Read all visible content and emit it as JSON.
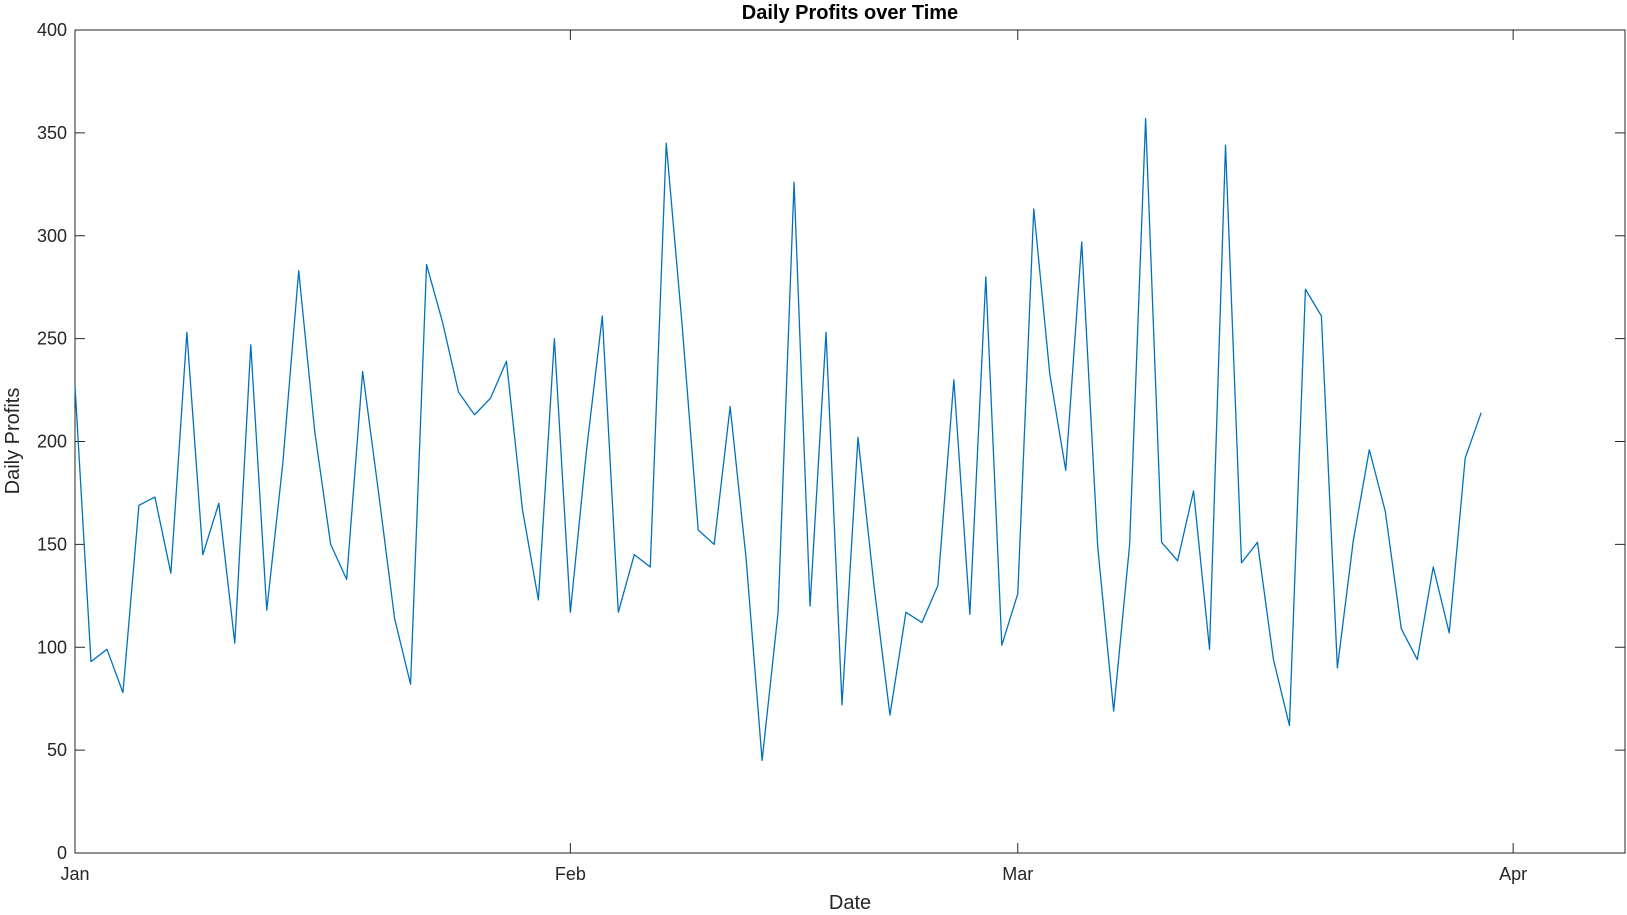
{
  "chart_data": {
    "type": "line",
    "title": "Daily Profits over Time",
    "xlabel": "Date",
    "ylabel": "Daily Profits",
    "ylim": [
      0,
      400
    ],
    "yticks": [
      0,
      50,
      100,
      150,
      200,
      250,
      300,
      350,
      400
    ],
    "xlim": [
      "2022-01-01",
      "2022-04-08"
    ],
    "xticks": [
      {
        "date": "2022-01-01",
        "label": "Jan"
      },
      {
        "date": "2022-02-01",
        "label": "Feb"
      },
      {
        "date": "2022-03-01",
        "label": "Mar"
      },
      {
        "date": "2022-04-01",
        "label": "Apr"
      }
    ],
    "grid": false,
    "x_start": "2022-01-01",
    "x_step_days": 1,
    "series": [
      {
        "color": "#0072BD",
        "values": [
          227,
          93,
          99,
          78,
          169,
          173,
          136,
          253,
          145,
          170,
          102,
          247,
          118,
          189,
          283,
          205,
          150,
          133,
          234,
          175,
          114,
          82,
          286,
          258,
          224,
          213,
          221,
          239,
          167,
          123,
          250,
          117,
          195,
          261,
          117,
          145,
          139,
          345,
          256,
          157,
          150,
          217,
          143,
          45,
          117,
          326,
          120,
          253,
          72,
          202,
          130,
          67,
          117,
          112,
          130,
          230,
          116,
          280,
          101,
          126,
          313,
          233,
          186,
          297,
          149,
          69,
          150,
          357,
          151,
          142,
          176,
          99,
          344,
          141,
          151,
          94,
          62,
          274,
          261,
          90,
          152,
          196,
          166,
          109,
          94,
          139,
          107,
          192,
          214
        ]
      }
    ]
  }
}
